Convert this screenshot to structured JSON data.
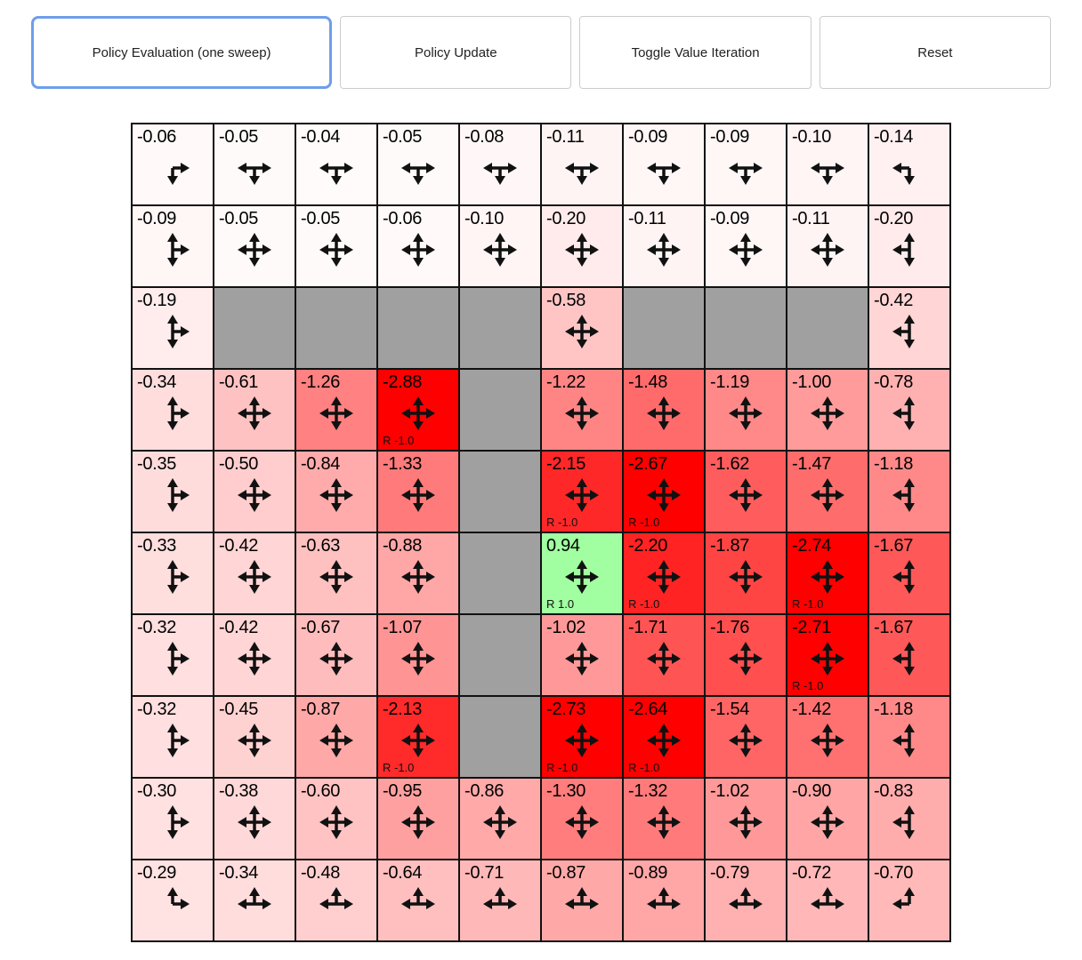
{
  "toolbar": {
    "active_border": "#6d9eeb",
    "buttons": [
      {
        "label": "Policy Evaluation (one sweep)",
        "active": true
      },
      {
        "label": "Policy Update",
        "active": false
      },
      {
        "label": "Toggle Value Iteration",
        "active": false
      },
      {
        "label": "Reset",
        "active": false
      }
    ]
  },
  "grid": {
    "rows": 10,
    "cols": 10,
    "colors": {
      "wall": "#a0a0a0",
      "border": "#111111",
      "arrow": "#111111",
      "value_color_scale": 100,
      "positive_example": "#a1ffa1",
      "negative_example": "#ff0000"
    },
    "cells": [
      [
        {
          "v": "-0.06",
          "a": "dr"
        },
        {
          "v": "-0.05",
          "a": "dlr"
        },
        {
          "v": "-0.04",
          "a": "dlr"
        },
        {
          "v": "-0.05",
          "a": "dlr"
        },
        {
          "v": "-0.08",
          "a": "dlr"
        },
        {
          "v": "-0.11",
          "a": "dlr"
        },
        {
          "v": "-0.09",
          "a": "dlr"
        },
        {
          "v": "-0.09",
          "a": "dlr"
        },
        {
          "v": "-0.10",
          "a": "dlr"
        },
        {
          "v": "-0.14",
          "a": "dl"
        }
      ],
      [
        {
          "v": "-0.09",
          "a": "udr"
        },
        {
          "v": "-0.05",
          "a": "udlr"
        },
        {
          "v": "-0.05",
          "a": "udlr"
        },
        {
          "v": "-0.06",
          "a": "udlr"
        },
        {
          "v": "-0.10",
          "a": "udlr"
        },
        {
          "v": "-0.20",
          "a": "udlr"
        },
        {
          "v": "-0.11",
          "a": "udlr"
        },
        {
          "v": "-0.09",
          "a": "udlr"
        },
        {
          "v": "-0.11",
          "a": "udlr"
        },
        {
          "v": "-0.20",
          "a": "udl"
        }
      ],
      [
        {
          "v": "-0.19",
          "a": "udr"
        },
        {
          "wall": true
        },
        {
          "wall": true
        },
        {
          "wall": true
        },
        {
          "wall": true
        },
        {
          "v": "-0.58",
          "a": "udlr"
        },
        {
          "wall": true
        },
        {
          "wall": true
        },
        {
          "wall": true
        },
        {
          "v": "-0.42",
          "a": "udl"
        }
      ],
      [
        {
          "v": "-0.34",
          "a": "udr"
        },
        {
          "v": "-0.61",
          "a": "udlr"
        },
        {
          "v": "-1.26",
          "a": "udlr"
        },
        {
          "v": "-2.88",
          "a": "udlr",
          "r": "R -1.0"
        },
        {
          "wall": true
        },
        {
          "v": "-1.22",
          "a": "udlr"
        },
        {
          "v": "-1.48",
          "a": "udlr"
        },
        {
          "v": "-1.19",
          "a": "udlr"
        },
        {
          "v": "-1.00",
          "a": "udlr"
        },
        {
          "v": "-0.78",
          "a": "udl"
        }
      ],
      [
        {
          "v": "-0.35",
          "a": "udr"
        },
        {
          "v": "-0.50",
          "a": "udlr"
        },
        {
          "v": "-0.84",
          "a": "udlr"
        },
        {
          "v": "-1.33",
          "a": "udlr"
        },
        {
          "wall": true
        },
        {
          "v": "-2.15",
          "a": "udlr",
          "r": "R -1.0"
        },
        {
          "v": "-2.67",
          "a": "udlr",
          "r": "R -1.0"
        },
        {
          "v": "-1.62",
          "a": "udlr"
        },
        {
          "v": "-1.47",
          "a": "udlr"
        },
        {
          "v": "-1.18",
          "a": "udl"
        }
      ],
      [
        {
          "v": "-0.33",
          "a": "udr"
        },
        {
          "v": "-0.42",
          "a": "udlr"
        },
        {
          "v": "-0.63",
          "a": "udlr"
        },
        {
          "v": "-0.88",
          "a": "udlr"
        },
        {
          "wall": true
        },
        {
          "v": "0.94",
          "a": "udlr",
          "r": "R 1.0"
        },
        {
          "v": "-2.20",
          "a": "udlr",
          "r": "R -1.0"
        },
        {
          "v": "-1.87",
          "a": "udlr"
        },
        {
          "v": "-2.74",
          "a": "udlr",
          "r": "R -1.0"
        },
        {
          "v": "-1.67",
          "a": "udl"
        }
      ],
      [
        {
          "v": "-0.32",
          "a": "udr"
        },
        {
          "v": "-0.42",
          "a": "udlr"
        },
        {
          "v": "-0.67",
          "a": "udlr"
        },
        {
          "v": "-1.07",
          "a": "udlr"
        },
        {
          "wall": true
        },
        {
          "v": "-1.02",
          "a": "udlr"
        },
        {
          "v": "-1.71",
          "a": "udlr"
        },
        {
          "v": "-1.76",
          "a": "udlr"
        },
        {
          "v": "-2.71",
          "a": "udlr",
          "r": "R -1.0"
        },
        {
          "v": "-1.67",
          "a": "udl"
        }
      ],
      [
        {
          "v": "-0.32",
          "a": "udr"
        },
        {
          "v": "-0.45",
          "a": "udlr"
        },
        {
          "v": "-0.87",
          "a": "udlr"
        },
        {
          "v": "-2.13",
          "a": "udlr",
          "r": "R -1.0"
        },
        {
          "wall": true
        },
        {
          "v": "-2.73",
          "a": "udlr",
          "r": "R -1.0"
        },
        {
          "v": "-2.64",
          "a": "udlr",
          "r": "R -1.0"
        },
        {
          "v": "-1.54",
          "a": "udlr"
        },
        {
          "v": "-1.42",
          "a": "udlr"
        },
        {
          "v": "-1.18",
          "a": "udl"
        }
      ],
      [
        {
          "v": "-0.30",
          "a": "udr"
        },
        {
          "v": "-0.38",
          "a": "udlr"
        },
        {
          "v": "-0.60",
          "a": "udlr"
        },
        {
          "v": "-0.95",
          "a": "udlr"
        },
        {
          "v": "-0.86",
          "a": "udlr"
        },
        {
          "v": "-1.30",
          "a": "udlr"
        },
        {
          "v": "-1.32",
          "a": "udlr"
        },
        {
          "v": "-1.02",
          "a": "udlr"
        },
        {
          "v": "-0.90",
          "a": "udlr"
        },
        {
          "v": "-0.83",
          "a": "udl"
        }
      ],
      [
        {
          "v": "-0.29",
          "a": "ur"
        },
        {
          "v": "-0.34",
          "a": "ulr"
        },
        {
          "v": "-0.48",
          "a": "ulr"
        },
        {
          "v": "-0.64",
          "a": "ulr"
        },
        {
          "v": "-0.71",
          "a": "ulr"
        },
        {
          "v": "-0.87",
          "a": "ulr"
        },
        {
          "v": "-0.89",
          "a": "ulr"
        },
        {
          "v": "-0.79",
          "a": "ulr"
        },
        {
          "v": "-0.72",
          "a": "ulr"
        },
        {
          "v": "-0.70",
          "a": "ul"
        }
      ]
    ]
  }
}
